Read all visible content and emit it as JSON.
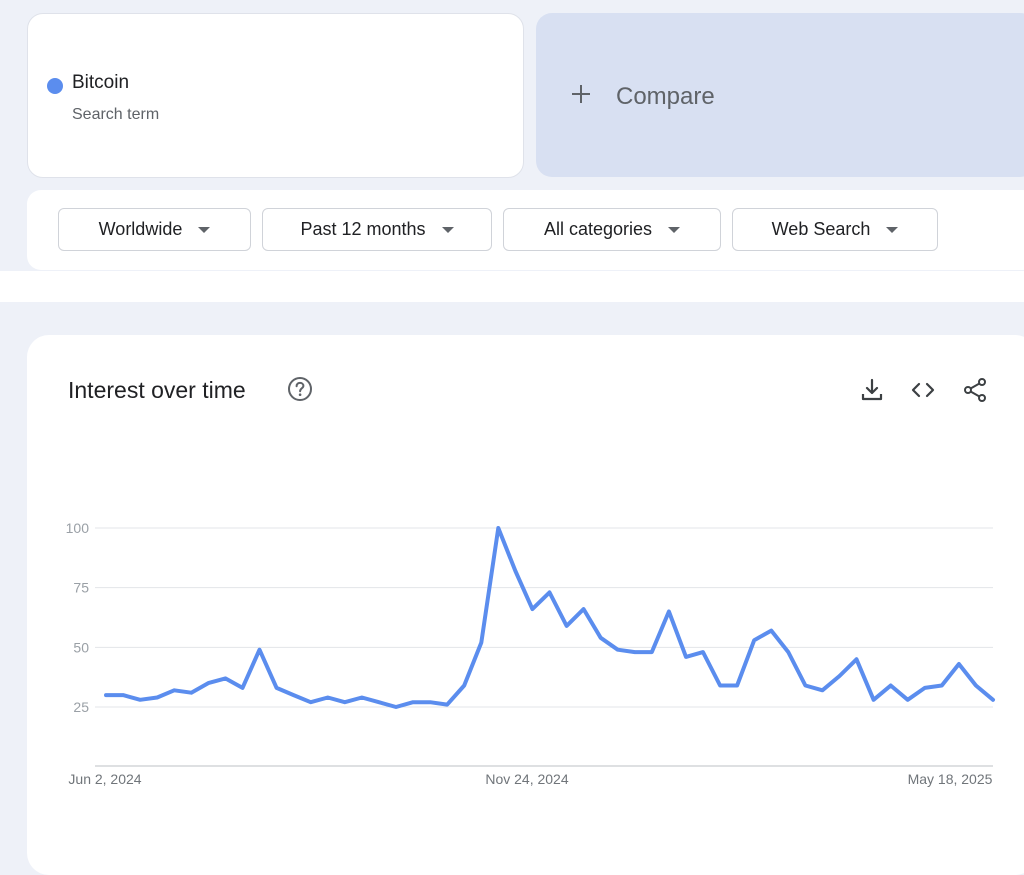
{
  "term": {
    "name": "Bitcoin",
    "type": "Search term",
    "color": "#5b8dee"
  },
  "compare": {
    "label": "Compare"
  },
  "filters": [
    {
      "label": "Worldwide"
    },
    {
      "label": "Past 12 months"
    },
    {
      "label": "All categories"
    },
    {
      "label": "Web Search"
    }
  ],
  "chart_panel": {
    "title": "Interest over time",
    "icons": [
      "help-icon",
      "download-icon",
      "embed-icon",
      "share-icon"
    ]
  },
  "chart_data": {
    "type": "line",
    "title": "",
    "xlabel": "",
    "ylabel": "",
    "ylim": [
      0,
      100
    ],
    "y_ticks": [
      100,
      75,
      50,
      25
    ],
    "x_tick_labels": [
      "Jun 2, 2024",
      "Nov 24, 2024",
      "May 18, 2025"
    ],
    "grid": true,
    "series": [
      {
        "color": "#5b8dee",
        "values": [
          30,
          30,
          28,
          29,
          32,
          31,
          35,
          37,
          33,
          49,
          33,
          30,
          27,
          29,
          27,
          29,
          27,
          25,
          27,
          27,
          26,
          34,
          52,
          100,
          82,
          66,
          73,
          59,
          66,
          54,
          49,
          48,
          48,
          65,
          46,
          48,
          34,
          34,
          53,
          57,
          48,
          34,
          32,
          38,
          45,
          28,
          34,
          28,
          33,
          34,
          43,
          34,
          28
        ]
      }
    ]
  }
}
